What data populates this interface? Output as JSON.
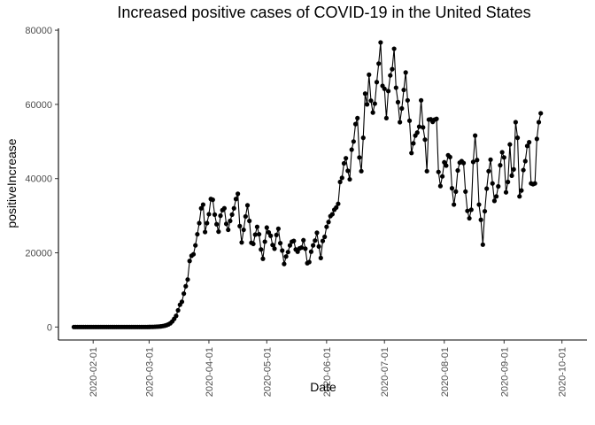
{
  "chart_data": {
    "type": "line",
    "title": "Increased positive cases of COVID-19 in the United States",
    "xlabel": "Date",
    "ylabel": "positiveIncrease",
    "x_is_date": true,
    "xlim": [
      "2020-01-14",
      "2020-10-14"
    ],
    "ylim": [
      -3500,
      80500
    ],
    "y_ticks": [
      0,
      20000,
      40000,
      60000,
      80000
    ],
    "x_ticks": [
      "2020-02-01",
      "2020-03-01",
      "2020-04-01",
      "2020-05-01",
      "2020-06-01",
      "2020-07-01",
      "2020-08-01",
      "2020-09-01",
      "2020-10-01"
    ],
    "grid": false,
    "legend": "none",
    "series": [
      {
        "x_start": "2020-01-22",
        "values": [
          0,
          0,
          0,
          0,
          0,
          0,
          0,
          0,
          0,
          0,
          0,
          0,
          0,
          0,
          0,
          0,
          0,
          0,
          0,
          0,
          0,
          0,
          0,
          0,
          0,
          0,
          0,
          0,
          0,
          0,
          0,
          0,
          0,
          0,
          0,
          0,
          0,
          0,
          10,
          20,
          30,
          40,
          60,
          90,
          120,
          170,
          250,
          350,
          500,
          700,
          1000,
          1500,
          2200,
          3000,
          4500,
          6000,
          6800,
          9000,
          11000,
          12800,
          17800,
          19200,
          19600,
          22000,
          25000,
          28000,
          32000,
          33000,
          25600,
          28000,
          30400,
          34500,
          34300,
          30300,
          27700,
          25700,
          30000,
          31500,
          32000,
          27800,
          26200,
          28600,
          30300,
          32000,
          34500,
          35900,
          27200,
          22800,
          26200,
          29800,
          32800,
          28600,
          22700,
          22400,
          24900,
          27000,
          25000,
          20900,
          18400,
          23000,
          26800,
          25500,
          24600,
          22100,
          21100,
          24800,
          26500,
          22600,
          20600,
          17000,
          19000,
          20200,
          22000,
          23000,
          23200,
          20900,
          20300,
          21200,
          21400,
          23400,
          21100,
          17200,
          17500,
          20300,
          22000,
          23300,
          25400,
          21700,
          18600,
          23200,
          24300,
          27000,
          28300,
          29900,
          30400,
          31600,
          32200,
          33200,
          39100,
          40200,
          44100,
          45500,
          42100,
          39800,
          47800,
          50000,
          54700,
          56300,
          45700,
          42000,
          51000,
          62900,
          60000,
          68000,
          61000,
          57800,
          60200,
          66000,
          71000,
          76700,
          65000,
          64200,
          56300,
          63600,
          67800,
          69500,
          75000,
          64500,
          60600,
          55200,
          58900,
          63900,
          68600,
          61100,
          55600,
          46900,
          49500,
          51600,
          52400,
          54000,
          61100,
          53800,
          50500,
          42000,
          55900,
          56000,
          55300,
          55900,
          56100,
          41800,
          38000,
          40600,
          44400,
          43500,
          46300,
          45800,
          37400,
          33000,
          36500,
          42200,
          44300,
          44700,
          44200,
          36500,
          31300,
          29300,
          31600,
          44500,
          51600,
          45000,
          33000,
          28900,
          22200,
          31200,
          37300,
          42000,
          45100,
          38700,
          34000,
          35200,
          37900,
          43600,
          47100,
          45700,
          36300,
          39100,
          49200,
          40800,
          42500,
          55200,
          51000,
          35200,
          36800,
          42300,
          44700,
          48800,
          49800,
          38700,
          38500,
          38700,
          50700,
          55200,
          57600
        ]
      }
    ]
  }
}
